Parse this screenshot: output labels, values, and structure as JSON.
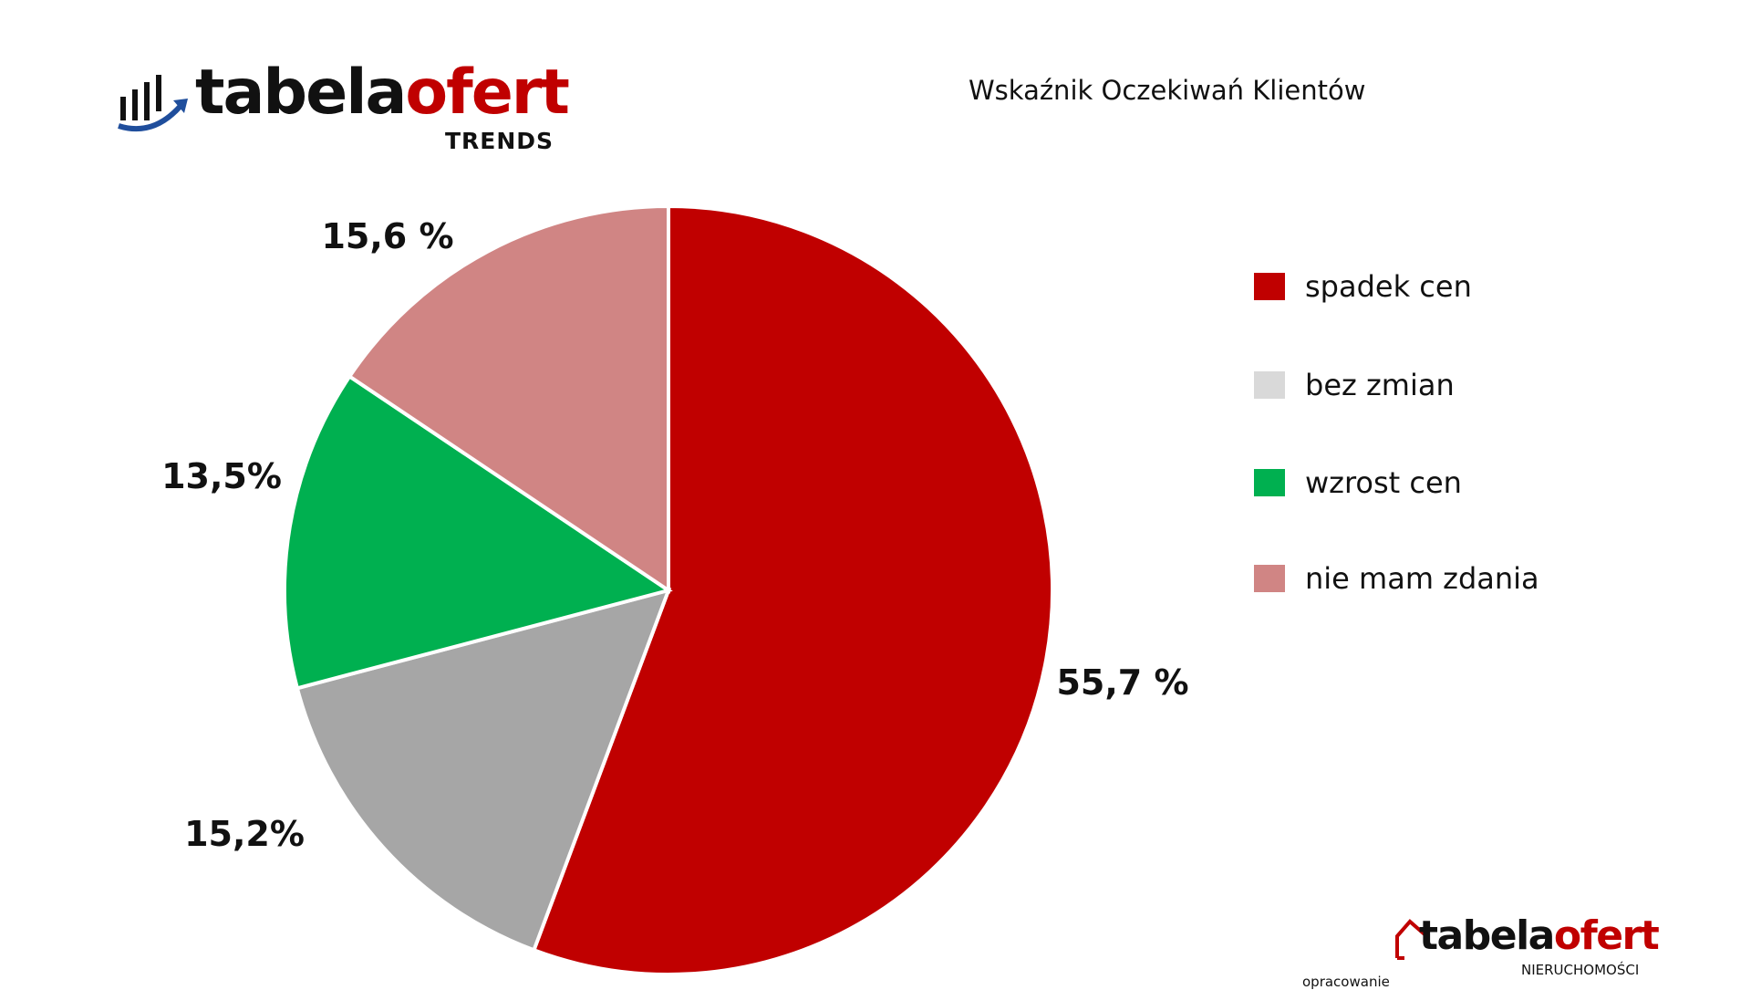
{
  "brand_top": {
    "word_black": "tabela",
    "word_red": "ofert",
    "sub": "TRENDS"
  },
  "brand_bottom": {
    "word_black": "tabela",
    "word_red": "ofert",
    "sub": "NIERUCHOMOŚCI",
    "credit": "opracowanie"
  },
  "chart_data": {
    "type": "pie",
    "title": "Wskaźnik Oczekiwań Klientów",
    "legend_position": "right",
    "slices": [
      {
        "name": "spadek cen",
        "value": 55.7,
        "label": "55,7 %",
        "color": "#c00000",
        "legend_color": "#c00000"
      },
      {
        "name": "bez zmian",
        "value": 15.2,
        "label": "15,2%",
        "color": "#a6a6a6",
        "legend_color": "#d9d9d9"
      },
      {
        "name": "wzrost cen",
        "value": 13.5,
        "label": "13,5%",
        "color": "#00b050",
        "legend_color": "#00b050"
      },
      {
        "name": "nie mam zdania",
        "value": 15.6,
        "label": "15,6 %",
        "color": "#d08584",
        "legend_color": "#d08584"
      }
    ]
  }
}
